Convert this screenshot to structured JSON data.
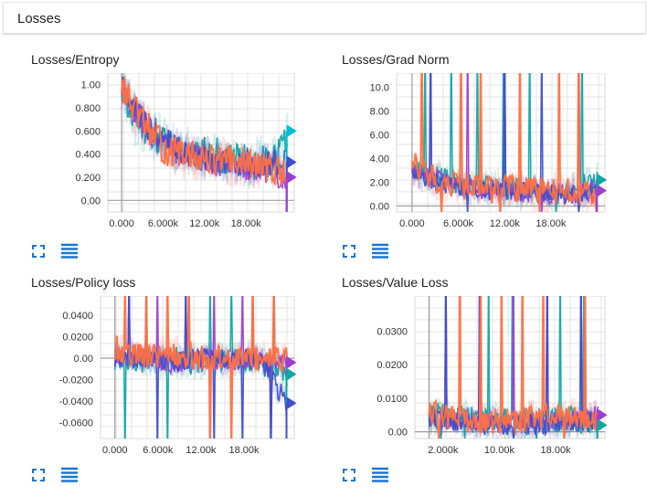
{
  "section": {
    "title": "Losses"
  },
  "colors": {
    "orange": "#ff7043",
    "teal": "#12a5a5",
    "purple": "#9c3fd1",
    "blue": "#3f4fc9",
    "cyan": "#00bcd4",
    "icon": "#1976d2"
  },
  "icons": {
    "expand": "fullscreen-icon",
    "data": "data-table-icon"
  },
  "chart_data": [
    {
      "type": "line",
      "title": "Losses/Entropy",
      "xlabel": "",
      "ylabel": "",
      "xlim": [
        -2000,
        25000
      ],
      "ylim": [
        -0.1,
        1.1
      ],
      "x_ticks": [
        0,
        6000,
        12000,
        18000
      ],
      "x_tick_labels": [
        "0.000",
        "6.000k",
        "12.00k",
        "18.00k"
      ],
      "y_ticks": [
        1.0,
        0.8,
        0.6,
        0.4,
        0.2,
        0.0
      ],
      "y_tick_labels": [
        "1.00",
        "0.800",
        "0.600",
        "0.400",
        "0.200",
        "0.00"
      ],
      "grid": true,
      "series": [
        {
          "color": "#ff7043",
          "x": [
            0,
            2000,
            4000,
            6000,
            8000,
            10000,
            12000,
            14000,
            16000,
            18000,
            20000,
            22000,
            24000
          ],
          "y": [
            1.0,
            0.75,
            0.62,
            0.45,
            0.4,
            0.38,
            0.36,
            0.35,
            0.33,
            0.32,
            0.3,
            0.28,
            0.2
          ],
          "noise": 0.14
        },
        {
          "color": "#12a5a5",
          "x": [
            0,
            2000,
            4000,
            6000,
            8000,
            10000,
            12000,
            14000,
            16000,
            18000,
            20000,
            22000,
            24000
          ],
          "y": [
            0.98,
            0.7,
            0.6,
            0.5,
            0.45,
            0.4,
            0.42,
            0.38,
            0.35,
            0.33,
            0.34,
            0.3,
            0.55
          ],
          "noise": 0.16
        },
        {
          "color": "#9c3fd1",
          "x": [
            0,
            4000,
            8000,
            12000,
            16000,
            20000,
            24000
          ],
          "y": [
            0.95,
            0.6,
            0.42,
            0.35,
            0.3,
            0.28,
            0.2
          ],
          "noise": 0.12
        },
        {
          "color": "#3f4fc9",
          "x": [
            0,
            4000,
            8000,
            12000,
            16000,
            20000,
            24000
          ],
          "y": [
            0.96,
            0.62,
            0.45,
            0.38,
            0.33,
            0.3,
            0.33
          ],
          "noise": 0.12
        }
      ],
      "end_markers": [
        {
          "color": "#00bcd4",
          "y": 0.6
        },
        {
          "color": "#3f4fc9",
          "y": 0.33
        },
        {
          "color": "#9c3fd1",
          "y": 0.2
        }
      ]
    },
    {
      "type": "line",
      "title": "Losses/Grad Norm",
      "xlabel": "",
      "ylabel": "",
      "xlim": [
        -2000,
        25000
      ],
      "ylim": [
        -0.5,
        11.2
      ],
      "x_ticks": [
        0,
        6000,
        12000,
        18000
      ],
      "x_tick_labels": [
        "0.000",
        "6.000k",
        "12.00k",
        "18.00k"
      ],
      "y_ticks": [
        10,
        8,
        6,
        4,
        2,
        0
      ],
      "y_tick_labels": [
        "10.0",
        "8.00",
        "6.00",
        "4.00",
        "2.00",
        "0.00"
      ],
      "grid": true,
      "series": [
        {
          "color": "#ff7043",
          "x": [
            0,
            2000,
            4000,
            6000,
            8000,
            10000,
            12000,
            14000,
            16000,
            18000,
            20000,
            22000,
            24000
          ],
          "y": [
            3.5,
            2.5,
            2.0,
            1.8,
            1.6,
            1.4,
            1.5,
            1.3,
            1.2,
            1.2,
            1.3,
            1.1,
            0.8
          ],
          "noise": 1.2,
          "spikes": 9
        },
        {
          "color": "#12a5a5",
          "x": [
            0,
            4000,
            8000,
            12000,
            16000,
            20000,
            24000
          ],
          "y": [
            3.0,
            2.2,
            1.6,
            1.5,
            1.2,
            1.2,
            2.2
          ],
          "noise": 1.0,
          "spikes": 7
        },
        {
          "color": "#9c3fd1",
          "x": [
            0,
            4000,
            8000,
            12000,
            16000,
            20000,
            24000
          ],
          "y": [
            2.8,
            2.0,
            1.5,
            1.3,
            1.1,
            1.0,
            1.3
          ],
          "noise": 0.9,
          "spikes": 5
        },
        {
          "color": "#3f4fc9",
          "x": [
            0,
            4000,
            8000,
            12000,
            16000,
            20000,
            24000
          ],
          "y": [
            2.6,
            1.9,
            1.4,
            1.3,
            1.1,
            1.0,
            1.0
          ],
          "noise": 0.8,
          "spikes": 5
        }
      ],
      "end_markers": [
        {
          "color": "#12a5a5",
          "y": 2.2
        },
        {
          "color": "#9c3fd1",
          "y": 1.3
        }
      ]
    },
    {
      "type": "line",
      "title": "Losses/Policy loss",
      "xlabel": "",
      "ylabel": "",
      "xlim": [
        -2000,
        25000
      ],
      "ylim": [
        -0.075,
        0.058
      ],
      "x_ticks": [
        0,
        6000,
        12000,
        18000
      ],
      "x_tick_labels": [
        "0.000",
        "6.000k",
        "12.00k",
        "18.00k"
      ],
      "y_ticks": [
        0.04,
        0.02,
        0.0,
        -0.02,
        -0.04,
        -0.06
      ],
      "y_tick_labels": [
        "0.0400",
        "0.0200",
        "0.00",
        "-0.0200",
        "-0.0400",
        "-0.0600"
      ],
      "grid": true,
      "series": [
        {
          "color": "#ff7043",
          "x": [
            0,
            4000,
            8000,
            12000,
            16000,
            20000,
            24000
          ],
          "y": [
            0.01,
            0.0,
            0.005,
            0.0,
            0.002,
            0.0,
            -0.002
          ],
          "noise": 0.012,
          "spikes": 8
        },
        {
          "color": "#12a5a5",
          "x": [
            0,
            4000,
            8000,
            12000,
            16000,
            20000,
            24000
          ],
          "y": [
            0.0,
            -0.005,
            0.0,
            -0.004,
            0.0,
            -0.003,
            -0.015
          ],
          "noise": 0.012,
          "spikes": 8
        },
        {
          "color": "#9c3fd1",
          "x": [
            0,
            4000,
            8000,
            12000,
            16000,
            20000,
            24000
          ],
          "y": [
            0.0,
            0.002,
            -0.004,
            0.0,
            -0.002,
            0.0,
            -0.004
          ],
          "noise": 0.01,
          "spikes": 6
        },
        {
          "color": "#3f4fc9",
          "x": [
            0,
            4000,
            8000,
            12000,
            16000,
            20000,
            24000
          ],
          "y": [
            0.0,
            0.0,
            -0.003,
            0.0,
            -0.002,
            0.0,
            -0.042
          ],
          "noise": 0.01,
          "spikes": 6
        }
      ],
      "end_markers": [
        {
          "color": "#9c3fd1",
          "y": -0.004
        },
        {
          "color": "#12a5a5",
          "y": -0.015
        },
        {
          "color": "#3f4fc9",
          "y": -0.042
        }
      ]
    },
    {
      "type": "line",
      "title": "Losses/Value Loss",
      "xlabel": "",
      "ylabel": "",
      "xlim": [
        -2000,
        25000
      ],
      "ylim": [
        -0.002,
        0.0405
      ],
      "x_ticks": [
        2000,
        10000,
        18000
      ],
      "x_tick_labels": [
        "2.000k",
        "10.00k",
        "18.00k"
      ],
      "y_ticks": [
        0.03,
        0.02,
        0.01,
        0.0
      ],
      "y_tick_labels": [
        "0.0300",
        "0.0200",
        "0.0100",
        "0.00"
      ],
      "grid": true,
      "series": [
        {
          "color": "#ff7043",
          "x": [
            0,
            4000,
            8000,
            12000,
            16000,
            20000,
            24000
          ],
          "y": [
            0.006,
            0.004,
            0.003,
            0.003,
            0.004,
            0.005,
            0.003
          ],
          "noise": 0.004,
          "spikes": 8
        },
        {
          "color": "#12a5a5",
          "x": [
            0,
            4000,
            8000,
            12000,
            16000,
            20000,
            24000
          ],
          "y": [
            0.005,
            0.004,
            0.003,
            0.003,
            0.003,
            0.004,
            0.002
          ],
          "noise": 0.004,
          "spikes": 7
        },
        {
          "color": "#9c3fd1",
          "x": [
            0,
            4000,
            8000,
            12000,
            16000,
            20000,
            24000
          ],
          "y": [
            0.004,
            0.003,
            0.003,
            0.002,
            0.003,
            0.003,
            0.005
          ],
          "noise": 0.003,
          "spikes": 5
        },
        {
          "color": "#3f4fc9",
          "x": [
            0,
            4000,
            8000,
            12000,
            16000,
            20000,
            24000
          ],
          "y": [
            0.004,
            0.003,
            0.002,
            0.002,
            0.002,
            0.003,
            0.003
          ],
          "noise": 0.003,
          "spikes": 5
        }
      ],
      "end_markers": [
        {
          "color": "#9c3fd1",
          "y": 0.005
        },
        {
          "color": "#12a5a5",
          "y": 0.002
        }
      ]
    }
  ]
}
